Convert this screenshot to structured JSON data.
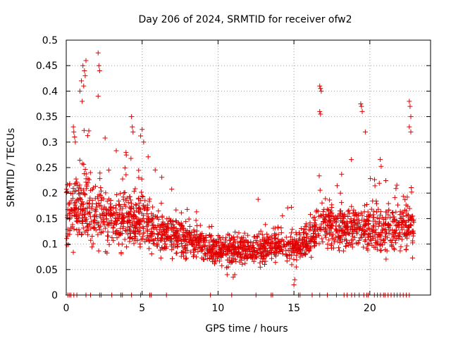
{
  "chart_data": {
    "type": "scatter",
    "title": "Day 206 of 2024, SRMTID for receiver ofw2",
    "xlabel": "GPS time / hours",
    "ylabel": "SRMTID / TECUs",
    "xlim": [
      0,
      24
    ],
    "ylim": [
      0,
      0.5
    ],
    "x_ticks": [
      0,
      5,
      10,
      15,
      20
    ],
    "x_tick_labels": [
      "0",
      "5",
      "10",
      "15",
      "20"
    ],
    "y_ticks": [
      0,
      0.05,
      0.1,
      0.15,
      0.2,
      0.25,
      0.3,
      0.35,
      0.4,
      0.45,
      0.5
    ],
    "y_tick_labels": [
      "0",
      "0.05",
      "0.1",
      "0.15",
      "0.2",
      "0.25",
      "0.3",
      "0.35",
      "0.4",
      "0.45",
      "0.5"
    ],
    "grid": true,
    "marker": "+",
    "marker_color": "#e00000",
    "envelope_hours": [
      0,
      1,
      2,
      3,
      4,
      5,
      6,
      7,
      8,
      9,
      10,
      11,
      12,
      13,
      14,
      15,
      16,
      17,
      18,
      19,
      20,
      21,
      22,
      23
    ],
    "envelope_median": [
      0.16,
      0.17,
      0.16,
      0.14,
      0.15,
      0.15,
      0.12,
      0.12,
      0.11,
      0.1,
      0.09,
      0.09,
      0.09,
      0.09,
      0.1,
      0.09,
      0.11,
      0.14,
      0.13,
      0.13,
      0.13,
      0.13,
      0.13,
      0.13
    ],
    "envelope_spread": [
      0.07,
      0.07,
      0.07,
      0.06,
      0.06,
      0.06,
      0.04,
      0.04,
      0.03,
      0.03,
      0.03,
      0.03,
      0.03,
      0.03,
      0.03,
      0.03,
      0.04,
      0.05,
      0.05,
      0.05,
      0.05,
      0.05,
      0.05,
      0.05
    ],
    "spike_points": [
      {
        "x": 1.0,
        "y": 0.42
      },
      {
        "x": 1.1,
        "y": 0.45
      },
      {
        "x": 1.2,
        "y": 0.44
      },
      {
        "x": 1.3,
        "y": 0.46
      },
      {
        "x": 1.15,
        "y": 0.41
      },
      {
        "x": 1.25,
        "y": 0.43
      },
      {
        "x": 0.9,
        "y": 0.4
      },
      {
        "x": 1.05,
        "y": 0.38
      },
      {
        "x": 2.1,
        "y": 0.475
      },
      {
        "x": 2.15,
        "y": 0.45
      },
      {
        "x": 2.2,
        "y": 0.44
      },
      {
        "x": 2.1,
        "y": 0.39
      },
      {
        "x": 0.5,
        "y": 0.32
      },
      {
        "x": 0.55,
        "y": 0.31
      },
      {
        "x": 0.6,
        "y": 0.3
      },
      {
        "x": 4.3,
        "y": 0.35
      },
      {
        "x": 4.35,
        "y": 0.33
      },
      {
        "x": 4.4,
        "y": 0.32
      },
      {
        "x": 5.0,
        "y": 0.325
      },
      {
        "x": 5.1,
        "y": 0.3
      },
      {
        "x": 16.7,
        "y": 0.41
      },
      {
        "x": 16.75,
        "y": 0.405
      },
      {
        "x": 16.8,
        "y": 0.4
      },
      {
        "x": 16.7,
        "y": 0.36
      },
      {
        "x": 16.75,
        "y": 0.355
      },
      {
        "x": 19.4,
        "y": 0.375
      },
      {
        "x": 19.45,
        "y": 0.37
      },
      {
        "x": 19.5,
        "y": 0.36
      },
      {
        "x": 19.7,
        "y": 0.32
      },
      {
        "x": 22.6,
        "y": 0.38
      },
      {
        "x": 22.65,
        "y": 0.37
      },
      {
        "x": 22.7,
        "y": 0.35
      },
      {
        "x": 22.6,
        "y": 0.33
      },
      {
        "x": 22.7,
        "y": 0.32
      }
    ],
    "low_points": [
      {
        "x": 15.0,
        "y": 0.02
      },
      {
        "x": 15.05,
        "y": 0.03
      },
      {
        "x": 11.0,
        "y": 0.035
      },
      {
        "x": 11.1,
        "y": 0.04
      },
      {
        "x": 10.6,
        "y": 0.04
      }
    ],
    "zero_marker_hours": [
      0.1,
      0.2,
      0.3,
      0.5,
      0.7,
      1.3,
      1.6,
      2.2,
      2.3,
      3.0,
      3.6,
      3.7,
      4.3,
      4.9,
      5.5,
      5.6,
      6.6,
      9.5,
      10.9,
      12.5,
      13.5,
      13.6,
      15.3,
      15.4,
      16.2,
      16.7,
      17.2,
      17.8,
      18.3,
      18.5,
      18.8,
      19.0,
      19.3,
      19.6,
      19.8,
      19.9,
      20.3,
      20.5,
      20.7,
      20.9,
      21.0,
      21.2,
      21.4,
      21.6,
      21.8,
      22.0,
      22.2,
      22.4,
      22.6
    ]
  }
}
